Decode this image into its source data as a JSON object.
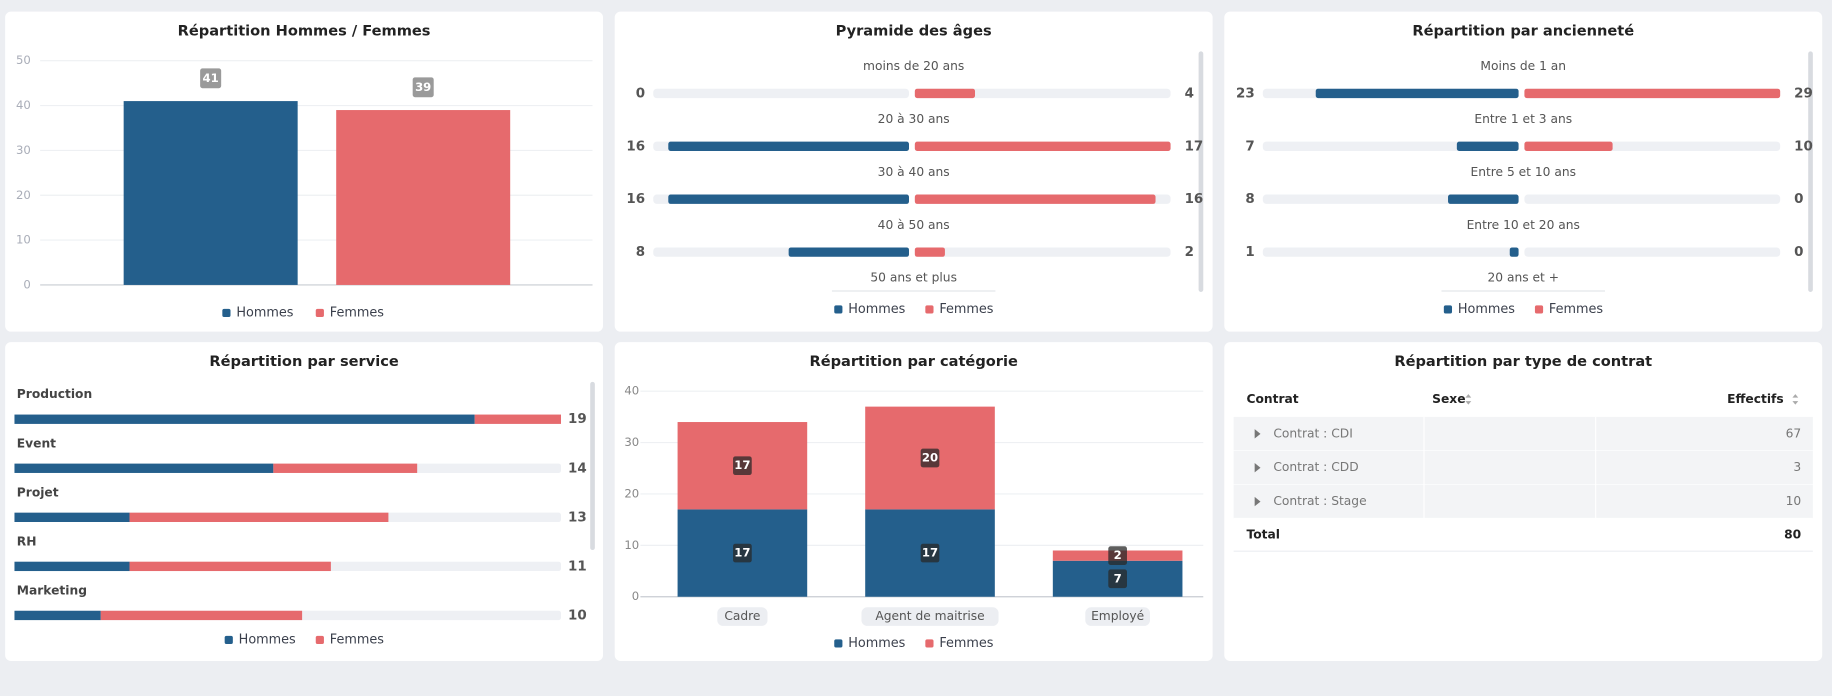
{
  "chart_data": [
    {
      "type": "bar",
      "title": "Répartition Hommes / Femmes",
      "categories": [
        "Hommes",
        "Femmes"
      ],
      "values": [
        41,
        39
      ],
      "colors": [
        "#245f8c",
        "#e66a6d"
      ],
      "ylim": [
        0,
        50
      ],
      "yticks": [
        0,
        10,
        20,
        30,
        40,
        50
      ],
      "grid": true
    },
    {
      "type": "pyramid",
      "title": "Pyramide des âges",
      "categories": [
        "moins de 20 ans",
        "20 à 30 ans",
        "30 à 40 ans",
        "40 à 50 ans",
        "50 ans et plus"
      ],
      "series": [
        {
          "name": "Hommes",
          "color": "#245f8c",
          "values": [
            0,
            16,
            16,
            8,
            null
          ]
        },
        {
          "name": "Femmes",
          "color": "#e66a6d",
          "values": [
            4,
            17,
            16,
            2,
            null
          ]
        }
      ]
    },
    {
      "type": "pyramid",
      "title": "Répartition par ancienneté",
      "categories": [
        "Moins de 1 an",
        "Entre 1 et 3 ans",
        "Entre 5 et 10 ans",
        "Entre 10 et 20 ans",
        "20 ans et +"
      ],
      "series": [
        {
          "name": "Hommes",
          "color": "#245f8c",
          "values": [
            23,
            7,
            8,
            1,
            null
          ]
        },
        {
          "name": "Femmes",
          "color": "#e66a6d",
          "values": [
            29,
            10,
            0,
            0,
            null
          ]
        }
      ]
    },
    {
      "type": "barh",
      "title": "Répartition par service",
      "categories": [
        "Production",
        "Event",
        "Projet",
        "RH",
        "Marketing"
      ],
      "series": [
        {
          "name": "Hommes",
          "color": "#245f8c",
          "values": [
            16,
            9,
            4,
            4,
            3
          ]
        },
        {
          "name": "Femmes",
          "color": "#e66a6d",
          "values": [
            3,
            5,
            9,
            7,
            7
          ]
        }
      ],
      "totals": [
        19,
        14,
        13,
        11,
        10
      ]
    },
    {
      "type": "stacked",
      "title": "Répartition par catégorie",
      "categories": [
        "Cadre",
        "Agent de maitrise",
        "Employé"
      ],
      "series": [
        {
          "name": "Hommes",
          "color": "#245f8c",
          "values": [
            17,
            17,
            7
          ]
        },
        {
          "name": "Femmes",
          "color": "#e66a6d",
          "values": [
            17,
            20,
            2
          ]
        }
      ],
      "ylim": [
        0,
        40
      ],
      "yticks": [
        0,
        10,
        20,
        30,
        40
      ],
      "grid": true
    }
  ],
  "table": {
    "title": "Répartition par type de contrat",
    "headers": [
      "Contrat",
      "Sexe",
      "Effectifs"
    ],
    "rows": [
      [
        "Contrat : CDI",
        67
      ],
      [
        "Contrat : CDD",
        3
      ],
      [
        "Contrat : Stage",
        10
      ]
    ],
    "total": [
      "Total",
      80
    ]
  }
}
